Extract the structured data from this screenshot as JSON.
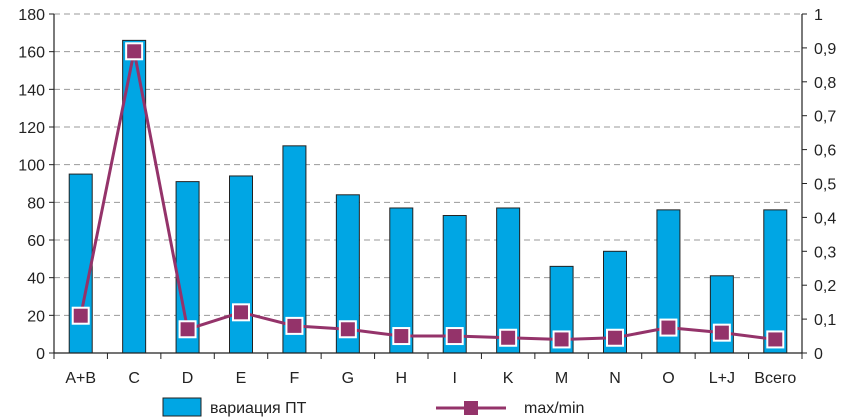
{
  "chart_data": {
    "type": "bar",
    "categories": [
      "A+B",
      "C",
      "D",
      "E",
      "F",
      "G",
      "H",
      "I",
      "K",
      "M",
      "N",
      "O",
      "L+J",
      "Всего"
    ],
    "ylim": [
      0,
      180
    ],
    "yticks": [
      "0",
      "20",
      "40",
      "60",
      "80",
      "100",
      "120",
      "140",
      "160",
      "180"
    ],
    "y2lim": [
      0,
      1
    ],
    "y2ticks": [
      "0",
      "0,1",
      "0,2",
      "0,3",
      "0,4",
      "0,5",
      "0,6",
      "0,7",
      "0,8",
      "0,9",
      "1"
    ],
    "grid": true,
    "legend_position": "bottom",
    "series": [
      {
        "name": "вариация ПТ",
        "type": "bar",
        "axis": "left",
        "color": "#00A6E4",
        "values": [
          95,
          166,
          91,
          94,
          110,
          84,
          77,
          73,
          77,
          46,
          54,
          76,
          41,
          76
        ]
      },
      {
        "name": "max/min",
        "type": "line",
        "axis": "right",
        "color": "#94336A",
        "values": [
          0.11,
          0.89,
          0.07,
          0.12,
          0.08,
          0.07,
          0.05,
          0.05,
          0.045,
          0.04,
          0.045,
          0.075,
          0.06,
          0.04
        ]
      }
    ]
  }
}
